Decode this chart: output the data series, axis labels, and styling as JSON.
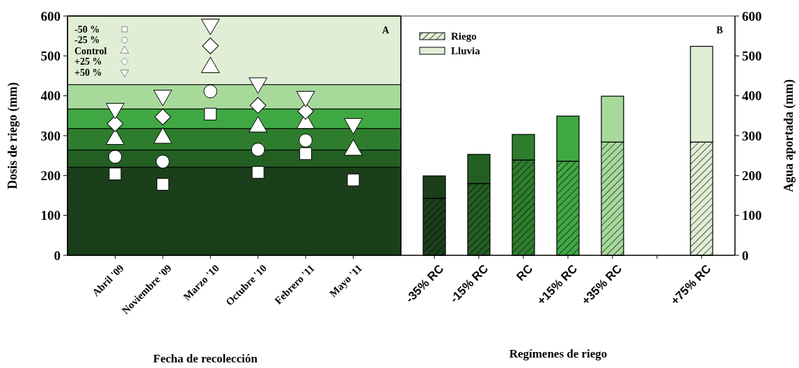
{
  "chart_data": [
    {
      "type": "scatter",
      "xlabel": "Fecha de recolección",
      "ylabel": "Dosis de riego (mm)",
      "annotations": [
        "A"
      ],
      "legend": "top left",
      "categories": [
        "Abril '09",
        "Noviembre '09",
        "Marzo '10",
        "Octubre '10",
        "Febrero '11",
        "Mayo '11"
      ],
      "ylim": [
        0,
        600
      ],
      "yticks": [
        0,
        100,
        200,
        300,
        400,
        500,
        600
      ],
      "bands": [
        {
          "axis": "y",
          "from": 0,
          "to": 221,
          "color": "#1b3f1b"
        },
        {
          "axis": "y",
          "from": 221,
          "to": 264,
          "color": "#235f23"
        },
        {
          "axis": "y",
          "from": 264,
          "to": 318,
          "color": "#2e7d2e"
        },
        {
          "axis": "y",
          "from": 318,
          "to": 367,
          "color": "#3fa843"
        },
        {
          "axis": "y",
          "from": 367,
          "to": 428,
          "color": "#a7d99b"
        },
        {
          "axis": "y",
          "from": 428,
          "to": 600,
          "color": "#e0eed5"
        }
      ],
      "series": [
        {
          "name": "-50 %",
          "color": "#ffffff",
          "marker": "square",
          "values": [
            204,
            178,
            354,
            208,
            255,
            189
          ]
        },
        {
          "name": "-25 %",
          "color": "#ffffff",
          "marker": "circle",
          "values": [
            247,
            235,
            411,
            265,
            288,
            null
          ]
        },
        {
          "name": "Control",
          "color": "#ffffff",
          "marker": "triangle",
          "values": [
            291,
            294,
            471,
            322,
            331,
            264
          ]
        },
        {
          "name": "+25 %",
          "color": "#ffffff",
          "marker": "diamond",
          "values": [
            330,
            347,
            525,
            376,
            361,
            null
          ]
        },
        {
          "name": "+50 %",
          "color": "#ffffff",
          "marker": "triangle-down",
          "values": [
            368,
            401,
            579,
            432,
            398,
            330
          ]
        }
      ]
    },
    {
      "type": "bar",
      "stacked": true,
      "xlabel": "Regímenes de riego",
      "y2label": "Agua aportada (mm)",
      "annotations": [
        "B"
      ],
      "legend": "top left",
      "categories": [
        "-35% RC",
        "-15% RC",
        "RC",
        "+15% RC",
        "+35% RC",
        null,
        "+75% RC"
      ],
      "y2lim": [
        0,
        600
      ],
      "y2ticks": [
        0,
        100,
        200,
        300,
        400,
        500,
        600
      ],
      "series": [
        {
          "name": "Riego",
          "axis": "y2",
          "color": "#e0eed5",
          "colors": [
            "#1b3f1b",
            "#235f23",
            "#2e7d2e",
            "#3fa843",
            "#a7d99b",
            null,
            "#e0eed5"
          ],
          "values": [
            143,
            180,
            239,
            236,
            284,
            null,
            284
          ]
        },
        {
          "name": "Lluvia",
          "axis": "y2",
          "color": "#e0eed5",
          "colors": [
            "#1b3f1b",
            "#235f23",
            "#2e7d2e",
            "#3fa843",
            "#a7d99b",
            null,
            "#e0eed5"
          ],
          "values": [
            56,
            73,
            64,
            113,
            115,
            null,
            240
          ]
        }
      ]
    }
  ]
}
